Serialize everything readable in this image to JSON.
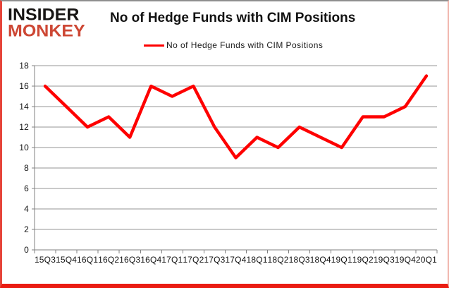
{
  "logo": {
    "line1": "INSIDER",
    "line2": "MONKEY"
  },
  "header": {
    "title": "No of Hedge Funds with CIM Positions"
  },
  "legend": {
    "label": "No of Hedge Funds with CIM Positions"
  },
  "colors": {
    "series_line": "#fe0000",
    "grid_line": "#969696",
    "axis_line": "#808080",
    "logo_black": "#171514",
    "logo_red": "#cd4734",
    "border_red": "#ea1c12",
    "text": "#121212"
  },
  "chart_data": {
    "type": "line",
    "categories": [
      "15Q3",
      "15Q4",
      "16Q1",
      "16Q2",
      "16Q3",
      "16Q4",
      "17Q1",
      "17Q2",
      "17Q3",
      "17Q4",
      "18Q1",
      "18Q2",
      "18Q3",
      "18Q4",
      "19Q1",
      "19Q2",
      "19Q3",
      "19Q4",
      "20Q1"
    ],
    "values": [
      16,
      14,
      12,
      13,
      11,
      16,
      15,
      16,
      12,
      9,
      11,
      10,
      12,
      11,
      10,
      13,
      13,
      14,
      17
    ],
    "title": "No of Hedge Funds with CIM Positions",
    "xlabel": "",
    "ylabel": "",
    "ylim": [
      0,
      18
    ],
    "ytick_step": 2,
    "grid": true,
    "legend_entries": [
      "No of Hedge Funds with CIM Positions"
    ],
    "legend_position": "top"
  }
}
